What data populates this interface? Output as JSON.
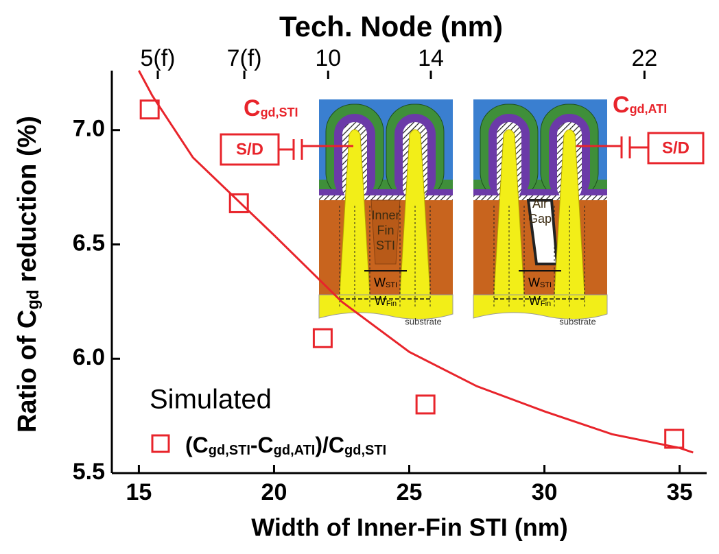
{
  "chart_data": {
    "type": "scatter",
    "top_axis": {
      "title": "Tech. Node (nm)",
      "ticks": [
        {
          "value": 15.7,
          "label": "5(f)"
        },
        {
          "value": 18.9,
          "label": "7(f)"
        },
        {
          "value": 22.0,
          "label": "10"
        },
        {
          "value": 25.8,
          "label": "14"
        },
        {
          "value": 33.7,
          "label": "22"
        }
      ]
    },
    "x_label": "Width of Inner-Fin STI (nm)",
    "y_label": [
      {
        "text": "Ratio of C"
      },
      {
        "text": "gd",
        "sub": true
      },
      {
        "text": " reduction (%)"
      }
    ],
    "xlim": [
      14,
      36
    ],
    "xticks": [
      15,
      20,
      25,
      30,
      35
    ],
    "ylim": [
      5.5,
      7.26
    ],
    "yticks": [
      5.5,
      {
        "value": 6.0,
        "label": "6.0"
      },
      6.5,
      {
        "value": 7.0,
        "label": "7.0"
      }
    ],
    "series": [
      {
        "kind": "points",
        "color": "#e8242b",
        "x": [
          15.4,
          18.7,
          21.8,
          25.6,
          34.8
        ],
        "values": [
          7.09,
          6.68,
          6.09,
          5.8,
          5.65
        ]
      },
      {
        "kind": "fit",
        "color": "#e8242b",
        "x": [
          15,
          15.5,
          17,
          20,
          22.5,
          25,
          27.5,
          30,
          32.5,
          35,
          35.5
        ],
        "values": [
          7.26,
          7.15,
          6.88,
          6.54,
          6.25,
          6.03,
          5.88,
          5.77,
          5.67,
          5.61,
          5.59
        ]
      }
    ],
    "legend": {
      "title": "Simulated",
      "label": [
        {
          "text": "(C"
        },
        {
          "text": "gd,STI",
          "sub": true
        },
        {
          "text": "-C"
        },
        {
          "text": "gd,ATI",
          "sub": true
        },
        {
          "text": ")/C"
        },
        {
          "text": "gd,STI",
          "sub": true
        }
      ]
    },
    "insets": [
      {
        "cap": [
          {
            "text": "C"
          },
          {
            "text": "gd,STI",
            "sub": true
          }
        ],
        "sd": "S/D",
        "fill": [
          "Inner",
          "Fin",
          "STI"
        ],
        "w_sti": [
          {
            "text": "W"
          },
          {
            "text": "STI",
            "sub": true
          }
        ],
        "w_fin": [
          {
            "text": "W"
          },
          {
            "text": "Fin",
            "sub": true
          }
        ],
        "substrate": "substrate"
      },
      {
        "cap": [
          {
            "text": "C"
          },
          {
            "text": "gd,ATI",
            "sub": true
          }
        ],
        "sd": "S/D",
        "fill": [
          "Air",
          "Gap"
        ],
        "w_sti": [
          {
            "text": "W"
          },
          {
            "text": "STI",
            "sub": true
          }
        ],
        "w_fin": [
          {
            "text": "W"
          },
          {
            "text": "Fin",
            "sub": true
          }
        ],
        "substrate": "substrate"
      }
    ]
  }
}
